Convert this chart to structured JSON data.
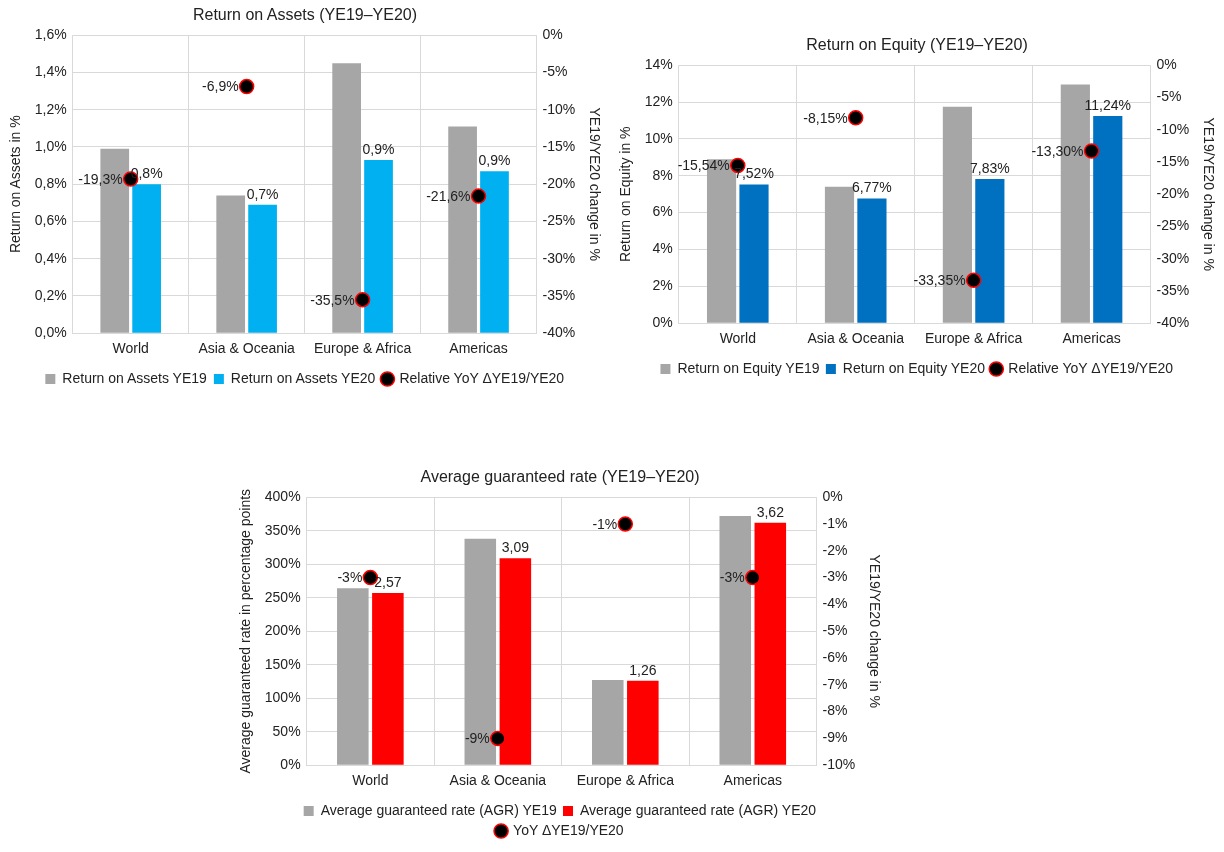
{
  "chart_data": [
    {
      "type": "bar",
      "title": "Return on Assets (YE19–YE20)",
      "ylabel": "Return on Assets in %",
      "y2label": "YE19/YE20 change in %",
      "categories": [
        "World",
        "Asia & Oceania",
        "Europe & Africa",
        "Americas"
      ],
      "series": [
        {
          "name": "Return on Assets YE19",
          "color": "#a6a6a6",
          "values": [
            0.99,
            0.74,
            1.45,
            1.11
          ]
        },
        {
          "name": "Return on Assets YE20",
          "color": "#00b0f0",
          "values": [
            0.8,
            0.69,
            0.93,
            0.87
          ],
          "value_labels": [
            "0,8%",
            "0,7%",
            "0,9%",
            "0,9%"
          ]
        },
        {
          "name": "Relative YoY ΔYE19/YE20",
          "type": "scatter",
          "axis": "y2",
          "color": "#000000",
          "x": [
            "World",
            "Asia & Oceania",
            "Europe & Africa",
            "Americas"
          ],
          "values": [
            -19.3,
            -6.9,
            -35.5,
            -21.6
          ],
          "value_labels": [
            "-19,3%",
            "-6,9%",
            "-35,5%",
            "-21,6%"
          ]
        }
      ],
      "ylim": [
        0,
        1.6
      ],
      "yticks": [
        {
          "value": 0,
          "label": "0,0%"
        },
        {
          "value": 0.2,
          "label": "0,2%"
        },
        {
          "value": 0.4,
          "label": "0,4%"
        },
        {
          "value": 0.6,
          "label": "0,6%"
        },
        {
          "value": 0.8,
          "label": "0,8%"
        },
        {
          "value": 1,
          "label": "1,0%"
        },
        {
          "value": 1.2,
          "label": "1,2%"
        },
        {
          "value": 1.4,
          "label": "1,4%"
        },
        {
          "value": 1.6,
          "label": "1,6%"
        }
      ],
      "y2lim": [
        -40,
        0
      ],
      "y2ticks": [
        {
          "value": 0,
          "label": "0%"
        },
        {
          "value": -5,
          "label": "-5%"
        },
        {
          "value": -10,
          "label": "-10%"
        },
        {
          "value": -15,
          "label": "-15%"
        },
        {
          "value": -20,
          "label": "-20%"
        },
        {
          "value": -25,
          "label": "-25%"
        },
        {
          "value": -30,
          "label": "-30%"
        },
        {
          "value": -35,
          "label": "-35%"
        },
        {
          "value": -40,
          "label": "-40%"
        }
      ],
      "grid": true,
      "legend": "bottom",
      "marker": "circle"
    },
    {
      "type": "bar",
      "title": "Return on Equity (YE19–YE20)",
      "ylabel": "Return on Equity in %",
      "y2label": "YE19/YE20 change in %",
      "categories": [
        "World",
        "Asia & Oceania",
        "Europe & Africa",
        "Americas"
      ],
      "series": [
        {
          "name": "Return on Equity YE19",
          "color": "#a6a6a6",
          "values": [
            8.9,
            7.4,
            11.75,
            12.95
          ]
        },
        {
          "name": "Return on Equity YE20",
          "color": "#0070c0",
          "values": [
            7.52,
            6.77,
            7.83,
            11.24
          ],
          "value_labels": [
            "7,52%",
            "6,77%",
            "7,83%",
            "11,24%"
          ]
        },
        {
          "name": "Relative YoY ΔYE19/YE20",
          "type": "scatter",
          "axis": "y2",
          "color": "#000000",
          "x": [
            "World",
            "Asia & Oceania",
            "Europe & Africa",
            "Americas"
          ],
          "values": [
            -15.54,
            -8.15,
            -33.35,
            -13.3
          ],
          "value_labels": [
            "-15,54%",
            "-8,15%",
            "-33,35%",
            "-13,30%"
          ]
        }
      ],
      "ylim": [
        0,
        14
      ],
      "yticks": [
        {
          "value": 0,
          "label": "0%"
        },
        {
          "value": 2,
          "label": "2%"
        },
        {
          "value": 4,
          "label": "4%"
        },
        {
          "value": 6,
          "label": "6%"
        },
        {
          "value": 8,
          "label": "8%"
        },
        {
          "value": 10,
          "label": "10%"
        },
        {
          "value": 12,
          "label": "12%"
        },
        {
          "value": 14,
          "label": "14%"
        }
      ],
      "y2lim": [
        -40,
        0
      ],
      "y2ticks": [
        {
          "value": 0,
          "label": "0%"
        },
        {
          "value": -5,
          "label": "-5%"
        },
        {
          "value": -10,
          "label": "-10%"
        },
        {
          "value": -15,
          "label": "-15%"
        },
        {
          "value": -20,
          "label": "-20%"
        },
        {
          "value": -25,
          "label": "-25%"
        },
        {
          "value": -30,
          "label": "-30%"
        },
        {
          "value": -35,
          "label": "-35%"
        },
        {
          "value": -40,
          "label": "-40%"
        }
      ],
      "grid": true,
      "legend": "bottom",
      "marker": "circle"
    },
    {
      "type": "bar",
      "title": "Average guaranteed rate (YE19–YE20)",
      "ylabel": "Average guaranteed rate in percentage points",
      "y2label": "YE19/YE20 change in %",
      "categories": [
        "World",
        "Asia & Oceania",
        "Europe & Africa",
        "Americas"
      ],
      "series": [
        {
          "name": "Average guaranteed rate (AGR) YE19",
          "color": "#a6a6a6",
          "values": [
            2.64,
            3.38,
            1.27,
            3.72
          ]
        },
        {
          "name": "Average guaranteed rate (AGR) YE20",
          "color": "#ff0000",
          "values": [
            2.57,
            3.09,
            1.26,
            3.62
          ],
          "value_labels": [
            "2,57",
            "3,09",
            "1,26",
            "3,62"
          ]
        },
        {
          "name": "YoY ΔYE19/YE20",
          "type": "scatter",
          "axis": "y2",
          "color": "#000000",
          "x": [
            "World",
            "Asia & Oceania",
            "Europe & Africa",
            "Americas"
          ],
          "values": [
            -3,
            -9,
            -1,
            -3
          ],
          "value_labels": [
            "-3%",
            "-9%",
            "-1%",
            "-3%"
          ]
        }
      ],
      "ylim": [
        0,
        4
      ],
      "yticks": [
        {
          "value": 0,
          "label": "0%"
        },
        {
          "value": 0.5,
          "label": "50%"
        },
        {
          "value": 1,
          "label": "100%"
        },
        {
          "value": 1.5,
          "label": "150%"
        },
        {
          "value": 2,
          "label": "200%"
        },
        {
          "value": 2.5,
          "label": "250%"
        },
        {
          "value": 3,
          "label": "300%"
        },
        {
          "value": 3.5,
          "label": "350%"
        },
        {
          "value": 4,
          "label": "400%"
        }
      ],
      "y2lim": [
        -10,
        0
      ],
      "y2ticks": [
        {
          "value": 0,
          "label": "0%"
        },
        {
          "value": -1,
          "label": "-1%"
        },
        {
          "value": -2,
          "label": "-2%"
        },
        {
          "value": -3,
          "label": "-3%"
        },
        {
          "value": -4,
          "label": "-4%"
        },
        {
          "value": -5,
          "label": "-5%"
        },
        {
          "value": -6,
          "label": "-6%"
        },
        {
          "value": -7,
          "label": "-7%"
        },
        {
          "value": -8,
          "label": "-8%"
        },
        {
          "value": -9,
          "label": "-9%"
        },
        {
          "value": -10,
          "label": "-10%"
        }
      ],
      "grid": true,
      "legend": "bottom",
      "marker": "circle"
    }
  ]
}
